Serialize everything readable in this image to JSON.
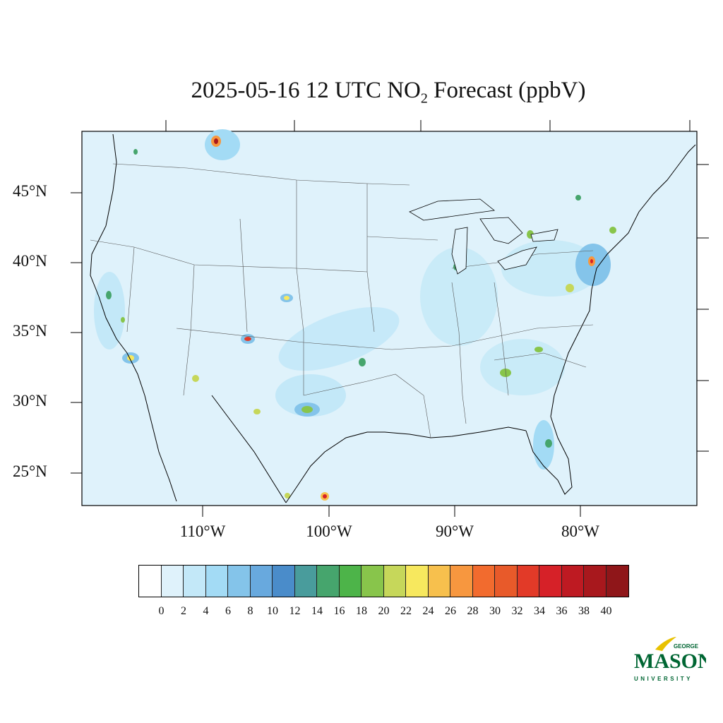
{
  "title": {
    "prefix": "2025-05-16 12 UTC NO",
    "subscript": "2",
    "suffix": " Forecast (ppbV)"
  },
  "latitude_labels": [
    "45°N",
    "40°N",
    "35°N",
    "30°N",
    "25°N"
  ],
  "longitude_labels": [
    "110°W",
    "100°W",
    "90°W",
    "80°W"
  ],
  "colorbar": {
    "labels": [
      "0",
      "2",
      "4",
      "6",
      "8",
      "10",
      "12",
      "14",
      "16",
      "18",
      "20",
      "22",
      "24",
      "26",
      "28",
      "30",
      "32",
      "34",
      "36",
      "38",
      "40"
    ],
    "colors": [
      "#ffffff",
      "#dff2fb",
      "#c3e8f8",
      "#a3dbf5",
      "#84c4ea",
      "#68a9de",
      "#4a8cca",
      "#499c9c",
      "#46a56d",
      "#4db449",
      "#88c54b",
      "#c6d75a",
      "#f7e85e",
      "#f7c04d",
      "#f7973f",
      "#f26b2e",
      "#e85a2a",
      "#e23a28",
      "#d62128",
      "#be1a22",
      "#a8181d",
      "#8f1619"
    ]
  },
  "logo": {
    "top": "GEORGE",
    "main": "MASON",
    "bottom": "UNIVERSITY",
    "colors": {
      "green": "#006633",
      "gold": "#e8c100"
    }
  },
  "map_colors": {
    "background": "#dff2fb",
    "low": "#c3e8f8",
    "mid": "#84c4ea",
    "moderate": "#46a56d",
    "high": "#f7e85e",
    "peak": "#d62128"
  }
}
